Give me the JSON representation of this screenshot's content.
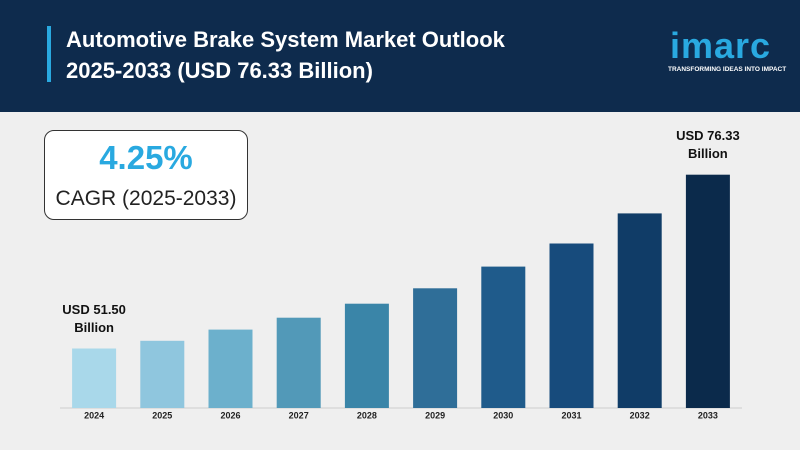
{
  "chart_data": {
    "type": "bar",
    "title": "Automotive Brake System Market Outlook 2025-2033 (USD 76.33 Billion)",
    "logo": {
      "name": "imarc",
      "tagline": "TRANSFORMING IDEAS INTO IMPACT"
    },
    "cagr": {
      "value": "4.25%",
      "label": "CAGR (2025-2033)"
    },
    "categories": [
      "2024",
      "2025",
      "2026",
      "2027",
      "2028",
      "2029",
      "2030",
      "2031",
      "2032",
      "2033"
    ],
    "values": [
      51.5,
      52.6,
      54.2,
      55.9,
      57.9,
      60.1,
      63.2,
      66.5,
      70.8,
      76.33
    ],
    "value_labels": [
      "USD 51.50 Billion",
      null,
      null,
      null,
      null,
      null,
      null,
      null,
      null,
      "USD 76.33 Billion"
    ],
    "colors": [
      "#a9d8ea",
      "#8fc6de",
      "#6cb0cc",
      "#5299b8",
      "#3a85a8",
      "#2f6e98",
      "#1f5b8b",
      "#174b7c",
      "#103c67",
      "#0b2a4b"
    ],
    "ylim": [
      43,
      78
    ]
  }
}
